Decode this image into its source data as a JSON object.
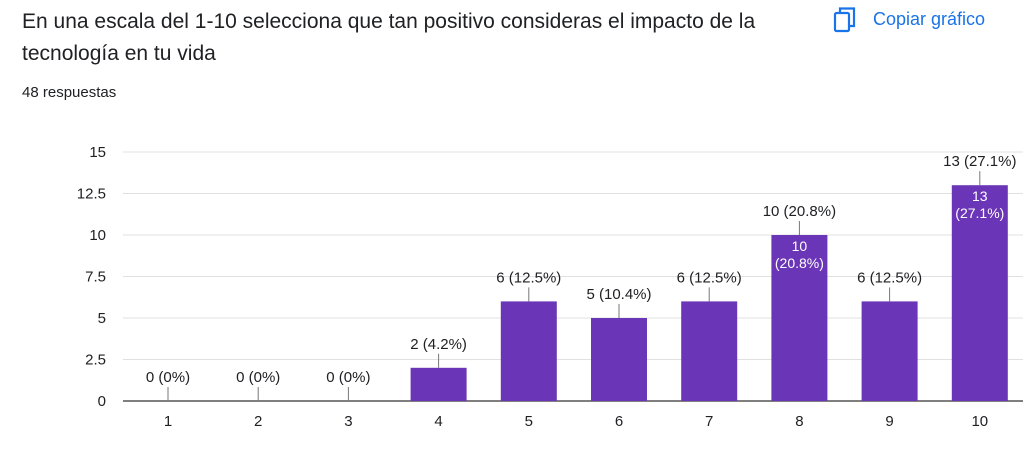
{
  "question": {
    "title": "En una escala del 1-10 selecciona que tan positivo consideras el impacto de la tecnología en tu vida",
    "responses": "48 respuestas"
  },
  "toolbar": {
    "copy_label": "Copiar gráfico",
    "copy_icon": "copy-icon"
  },
  "colors": {
    "bar": "#6a35b6",
    "grid": "#e0e0e0",
    "axis": "#333333",
    "label": "#202124",
    "accent": "#1a73e8"
  },
  "chart_data": {
    "type": "bar",
    "title": "En una escala del 1-10 selecciona que tan positivo consideras el impacto de la tecnología en tu vida",
    "xlabel": "",
    "ylabel": "",
    "categories": [
      "1",
      "2",
      "3",
      "4",
      "5",
      "6",
      "7",
      "8",
      "9",
      "10"
    ],
    "values": [
      0,
      0,
      0,
      2,
      6,
      5,
      6,
      10,
      6,
      13
    ],
    "labels": [
      "0 (0%)",
      "0 (0%)",
      "0 (0%)",
      "2 (4.2%)",
      "6 (12.5%)",
      "5 (10.4%)",
      "6 (12.5%)",
      "10 (20.8%)",
      "6 (12.5%)",
      "13 (27.1%)"
    ],
    "inner_labels": [
      {
        "category": "8",
        "line1": "10",
        "line2": "(20.8%)"
      },
      {
        "category": "10",
        "line1": "13",
        "line2": "(27.1%)"
      }
    ],
    "yticks": [
      "0",
      "2.5",
      "5",
      "7.5",
      "10",
      "12.5",
      "15"
    ],
    "ylim": [
      0,
      15
    ],
    "grid": true
  }
}
